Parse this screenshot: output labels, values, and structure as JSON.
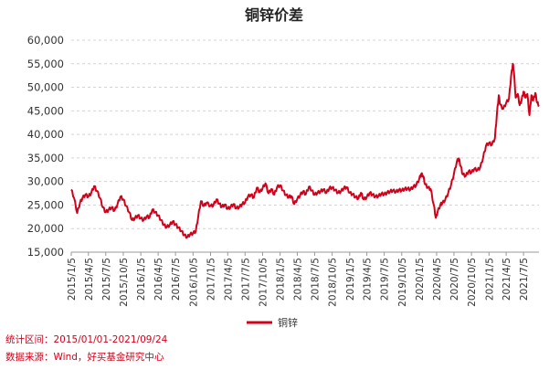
{
  "chart_data": {
    "type": "line",
    "title": "铜锌价差",
    "xlabel": "",
    "ylabel": "",
    "ylim": [
      15000,
      60000
    ],
    "yticks": [
      15000,
      20000,
      25000,
      30000,
      35000,
      40000,
      45000,
      50000,
      55000,
      60000
    ],
    "ytick_labels": [
      "15,000",
      "20,000",
      "25,000",
      "30,000",
      "35,000",
      "40,000",
      "45,000",
      "50,000",
      "55,000",
      "60,000"
    ],
    "xticks": [
      "2015/1/5",
      "2015/4/5",
      "2015/7/5",
      "2015/10/5",
      "2016/1/5",
      "2016/4/5",
      "2016/7/5",
      "2016/10/5",
      "2017/1/5",
      "2017/4/5",
      "2017/7/5",
      "2017/10/5",
      "2018/1/5",
      "2018/4/5",
      "2018/7/5",
      "2018/10/5",
      "2019/1/5",
      "2019/4/5",
      "2019/7/5",
      "2019/10/5",
      "2020/1/5",
      "2020/4/5",
      "2020/7/5",
      "2020/10/5",
      "2021/1/5",
      "2021/4/5",
      "2021/7/5"
    ],
    "x_start": "2015/1/5",
    "x_end": "2021/9/24",
    "grid": "horizontal dashed",
    "legend_position": "bottom-center",
    "series": [
      {
        "name": "铜锌",
        "color": "#d0021b",
        "points": [
          [
            "2015/1/5",
            28300
          ],
          [
            "2015/1/20",
            26500
          ],
          [
            "2015/2/5",
            23300
          ],
          [
            "2015/2/20",
            25500
          ],
          [
            "2015/3/5",
            26500
          ],
          [
            "2015/3/20",
            27200
          ],
          [
            "2015/4/5",
            26800
          ],
          [
            "2015/4/20",
            27600
          ],
          [
            "2015/5/5",
            29000
          ],
          [
            "2015/5/20",
            28000
          ],
          [
            "2015/6/5",
            26500
          ],
          [
            "2015/6/20",
            24500
          ],
          [
            "2015/7/5",
            23500
          ],
          [
            "2015/7/20",
            24000
          ],
          [
            "2015/8/5",
            24500
          ],
          [
            "2015/8/20",
            23800
          ],
          [
            "2015/9/5",
            25200
          ],
          [
            "2015/9/20",
            26800
          ],
          [
            "2015/10/5",
            26200
          ],
          [
            "2015/10/20",
            24800
          ],
          [
            "2015/11/5",
            23500
          ],
          [
            "2015/11/20",
            21800
          ],
          [
            "2015/12/5",
            22200
          ],
          [
            "2015/12/20",
            22800
          ],
          [
            "2016/1/5",
            22200
          ],
          [
            "2016/1/20",
            21800
          ],
          [
            "2016/2/5",
            22600
          ],
          [
            "2016/2/20",
            22400
          ],
          [
            "2016/3/5",
            24000
          ],
          [
            "2016/3/20",
            23500
          ],
          [
            "2016/4/5",
            22800
          ],
          [
            "2016/4/20",
            21800
          ],
          [
            "2016/5/5",
            20800
          ],
          [
            "2016/5/20",
            20300
          ],
          [
            "2016/6/5",
            20800
          ],
          [
            "2016/6/20",
            21500
          ],
          [
            "2016/7/5",
            20900
          ],
          [
            "2016/7/20",
            20200
          ],
          [
            "2016/8/5",
            19500
          ],
          [
            "2016/8/20",
            18600
          ],
          [
            "2016/9/5",
            18200
          ],
          [
            "2016/9/20",
            18800
          ],
          [
            "2016/10/5",
            19000
          ],
          [
            "2016/10/20",
            19500
          ],
          [
            "2016/11/1",
            22500
          ],
          [
            "2016/11/15",
            25800
          ],
          [
            "2016/12/1",
            24800
          ],
          [
            "2016/12/15",
            25500
          ],
          [
            "2017/1/5",
            24800
          ],
          [
            "2017/1/20",
            25000
          ],
          [
            "2017/2/5",
            26200
          ],
          [
            "2017/2/20",
            25300
          ],
          [
            "2017/3/5",
            24600
          ],
          [
            "2017/3/20",
            25100
          ],
          [
            "2017/4/5",
            24200
          ],
          [
            "2017/4/20",
            24600
          ],
          [
            "2017/5/5",
            25200
          ],
          [
            "2017/5/20",
            24300
          ],
          [
            "2017/6/5",
            24600
          ],
          [
            "2017/6/20",
            25200
          ],
          [
            "2017/7/5",
            25600
          ],
          [
            "2017/7/20",
            26800
          ],
          [
            "2017/8/5",
            27200
          ],
          [
            "2017/8/20",
            26600
          ],
          [
            "2017/9/5",
            28700
          ],
          [
            "2017/9/20",
            27700
          ],
          [
            "2017/10/5",
            28600
          ],
          [
            "2017/10/20",
            29600
          ],
          [
            "2017/11/5",
            27500
          ],
          [
            "2017/11/20",
            28400
          ],
          [
            "2017/12/5",
            27200
          ],
          [
            "2017/12/20",
            28800
          ],
          [
            "2018/1/5",
            29200
          ],
          [
            "2018/1/20",
            28100
          ],
          [
            "2018/2/5",
            27100
          ],
          [
            "2018/2/20",
            26700
          ],
          [
            "2018/3/5",
            26900
          ],
          [
            "2018/3/20",
            25200
          ],
          [
            "2018/4/5",
            26300
          ],
          [
            "2018/4/20",
            27100
          ],
          [
            "2018/5/5",
            27900
          ],
          [
            "2018/5/20",
            27300
          ],
          [
            "2018/6/5",
            28900
          ],
          [
            "2018/6/20",
            28100
          ],
          [
            "2018/7/5",
            27200
          ],
          [
            "2018/7/20",
            27600
          ],
          [
            "2018/8/5",
            27900
          ],
          [
            "2018/8/20",
            28300
          ],
          [
            "2018/9/5",
            27600
          ],
          [
            "2018/9/20",
            28600
          ],
          [
            "2018/10/5",
            28700
          ],
          [
            "2018/10/20",
            28200
          ],
          [
            "2018/11/5",
            27600
          ],
          [
            "2018/11/20",
            27900
          ],
          [
            "2018/12/5",
            28600
          ],
          [
            "2018/12/20",
            28800
          ],
          [
            "2019/1/5",
            27600
          ],
          [
            "2019/1/20",
            27300
          ],
          [
            "2019/2/5",
            26700
          ],
          [
            "2019/2/20",
            26400
          ],
          [
            "2019/3/5",
            27600
          ],
          [
            "2019/3/20",
            26200
          ],
          [
            "2019/4/5",
            26700
          ],
          [
            "2019/4/20",
            27600
          ],
          [
            "2019/5/5",
            27200
          ],
          [
            "2019/5/20",
            26800
          ],
          [
            "2019/6/5",
            26900
          ],
          [
            "2019/6/20",
            27400
          ],
          [
            "2019/7/5",
            27300
          ],
          [
            "2019/7/20",
            27600
          ],
          [
            "2019/8/5",
            27900
          ],
          [
            "2019/8/20",
            28100
          ],
          [
            "2019/9/5",
            27800
          ],
          [
            "2019/9/20",
            28200
          ],
          [
            "2019/10/5",
            28100
          ],
          [
            "2019/10/20",
            28400
          ],
          [
            "2019/11/5",
            28500
          ],
          [
            "2019/11/20",
            28300
          ],
          [
            "2019/12/5",
            28900
          ],
          [
            "2019/12/20",
            29200
          ],
          [
            "2020/1/5",
            30600
          ],
          [
            "2020/1/15",
            31600
          ],
          [
            "2020/1/25",
            31200
          ],
          [
            "2020/2/5",
            29400
          ],
          [
            "2020/2/20",
            28700
          ],
          [
            "2020/3/5",
            28400
          ],
          [
            "2020/3/20",
            25200
          ],
          [
            "2020/4/1",
            22300
          ],
          [
            "2020/4/10",
            23500
          ],
          [
            "2020/4/25",
            25100
          ],
          [
            "2020/5/5",
            25400
          ],
          [
            "2020/5/20",
            26100
          ],
          [
            "2020/6/5",
            27600
          ],
          [
            "2020/6/20",
            29300
          ],
          [
            "2020/7/5",
            31600
          ],
          [
            "2020/7/20",
            34200
          ],
          [
            "2020/7/30",
            34900
          ],
          [
            "2020/8/10",
            33200
          ],
          [
            "2020/8/20",
            31500
          ],
          [
            "2020/9/5",
            31200
          ],
          [
            "2020/9/20",
            32200
          ],
          [
            "2020/10/5",
            31900
          ],
          [
            "2020/10/20",
            32700
          ],
          [
            "2020/11/5",
            32400
          ],
          [
            "2020/11/20",
            33000
          ],
          [
            "2020/12/5",
            35100
          ],
          [
            "2020/12/20",
            37600
          ],
          [
            "2021/1/5",
            38200
          ],
          [
            "2021/1/20",
            37800
          ],
          [
            "2021/2/5",
            39200
          ],
          [
            "2021/2/15",
            44200
          ],
          [
            "2021/2/25",
            48300
          ],
          [
            "2021/3/5",
            46300
          ],
          [
            "2021/3/20",
            45400
          ],
          [
            "2021/4/5",
            46700
          ],
          [
            "2021/4/20",
            47600
          ],
          [
            "2021/5/1",
            52400
          ],
          [
            "2021/5/10",
            55000
          ],
          [
            "2021/5/15",
            53400
          ],
          [
            "2021/5/25",
            47800
          ],
          [
            "2021/6/5",
            48600
          ],
          [
            "2021/6/15",
            46200
          ],
          [
            "2021/6/25",
            47300
          ],
          [
            "2021/7/5",
            49100
          ],
          [
            "2021/7/15",
            47800
          ],
          [
            "2021/7/25",
            48600
          ],
          [
            "2021/8/5",
            44100
          ],
          [
            "2021/8/15",
            48300
          ],
          [
            "2021/8/25",
            47200
          ],
          [
            "2021/9/5",
            48800
          ],
          [
            "2021/9/15",
            46700
          ],
          [
            "2021/9/24",
            46200
          ]
        ]
      }
    ]
  },
  "footer": {
    "range_note": "统计区间：2015/01/01-2021/09/24",
    "source_note": "数据来源：Wind，好买基金研究中心"
  }
}
